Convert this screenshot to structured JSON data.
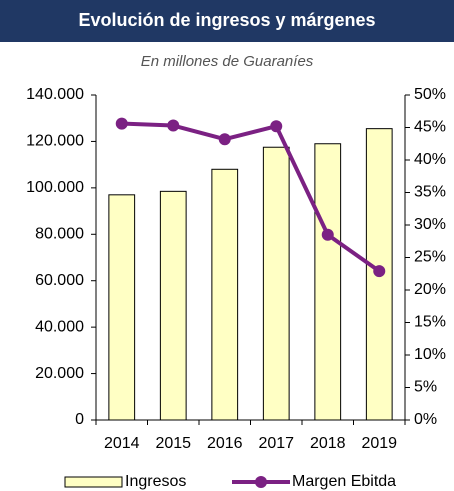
{
  "chart_data": {
    "type": "bar",
    "title": "Evolución de ingresos y márgenes",
    "subtitle": "En millones de Guaraníes",
    "categories": [
      "2014",
      "2015",
      "2016",
      "2017",
      "2018",
      "2019"
    ],
    "series": [
      {
        "name": "Ingresos",
        "type": "bar",
        "color": "#ffffc4",
        "values": [
          97000,
          98500,
          108000,
          117500,
          119000,
          125500
        ]
      },
      {
        "name": "Margen Ebitda",
        "type": "line",
        "color": "#7b2183",
        "axis": "y2",
        "values": [
          45.6,
          45.3,
          43.2,
          45.2,
          28.5,
          22.9
        ]
      }
    ],
    "ylim": [
      0,
      140000
    ],
    "yticks": [
      0,
      {
        "value": 20000,
        "label": "20.000"
      },
      {
        "value": 40000,
        "label": "40.000"
      },
      {
        "value": 60000,
        "label": "60.000"
      },
      {
        "value": 80000,
        "label": "80.000"
      },
      {
        "value": 100000,
        "label": "100.000"
      },
      {
        "value": 120000,
        "label": "120.000"
      },
      {
        "value": 140000,
        "label": "140.000"
      }
    ],
    "y2lim": [
      0,
      50
    ],
    "y2ticks": [
      {
        "value": 0,
        "label": "0%"
      },
      {
        "value": 5,
        "label": "5%"
      },
      {
        "value": 10,
        "label": "10%"
      },
      {
        "value": 15,
        "label": "15%"
      },
      {
        "value": 20,
        "label": "20%"
      },
      {
        "value": 25,
        "label": "25%"
      },
      {
        "value": 30,
        "label": "30%"
      },
      {
        "value": 35,
        "label": "35%"
      },
      {
        "value": 40,
        "label": "40%"
      },
      {
        "value": 45,
        "label": "45%"
      },
      {
        "value": 50,
        "label": "50%"
      }
    ],
    "legend": "bottom"
  }
}
